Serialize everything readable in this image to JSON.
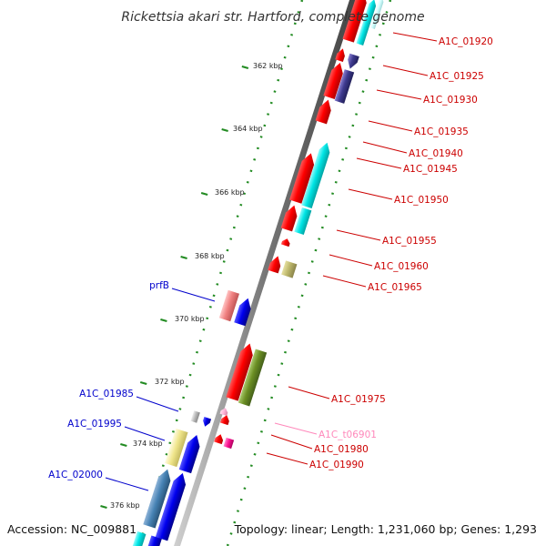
{
  "title": "Rickettsia akari str. Hartford, complete genome",
  "accession_text": "Accession: NC_009881",
  "topology_text": "Topology: linear; Length: 1,231,060 bp; Genes: 1,293",
  "colors": {
    "red": "#ff0000",
    "blue": "#0000ee",
    "cyan": "#00e5e5",
    "pink_label": "#ff88bb",
    "tick_green": "#228b22",
    "backbone": "#777777"
  },
  "ticks": [
    {
      "label": "362 kbp"
    },
    {
      "label": "364 kbp"
    },
    {
      "label": "366 kbp"
    },
    {
      "label": "368 kbp"
    },
    {
      "label": "370 kbp"
    },
    {
      "label": "372 kbp"
    },
    {
      "label": "374 kbp"
    },
    {
      "label": "376 kbp"
    }
  ],
  "right_labels": [
    {
      "text": "A1C_01920",
      "color": "#cc0000"
    },
    {
      "text": "A1C_01925",
      "color": "#cc0000"
    },
    {
      "text": "A1C_01930",
      "color": "#cc0000"
    },
    {
      "text": "A1C_01935",
      "color": "#cc0000"
    },
    {
      "text": "A1C_01940",
      "color": "#cc0000"
    },
    {
      "text": "A1C_01945",
      "color": "#cc0000"
    },
    {
      "text": "A1C_01950",
      "color": "#cc0000"
    },
    {
      "text": "A1C_01955",
      "color": "#cc0000"
    },
    {
      "text": "A1C_01960",
      "color": "#cc0000"
    },
    {
      "text": "A1C_01965",
      "color": "#cc0000"
    },
    {
      "text": "A1C_01975",
      "color": "#cc0000"
    },
    {
      "text": "A1C_t06901",
      "color": "#ff88bb"
    },
    {
      "text": "A1C_01980",
      "color": "#cc0000"
    },
    {
      "text": "A1C_01990",
      "color": "#cc0000"
    }
  ],
  "left_labels": [
    {
      "text": "prfB",
      "color": "#0000cc"
    },
    {
      "text": "A1C_01985",
      "color": "#0000cc"
    },
    {
      "text": "A1C_01995",
      "color": "#0000cc"
    },
    {
      "text": "A1C_02000",
      "color": "#0000cc"
    }
  ]
}
